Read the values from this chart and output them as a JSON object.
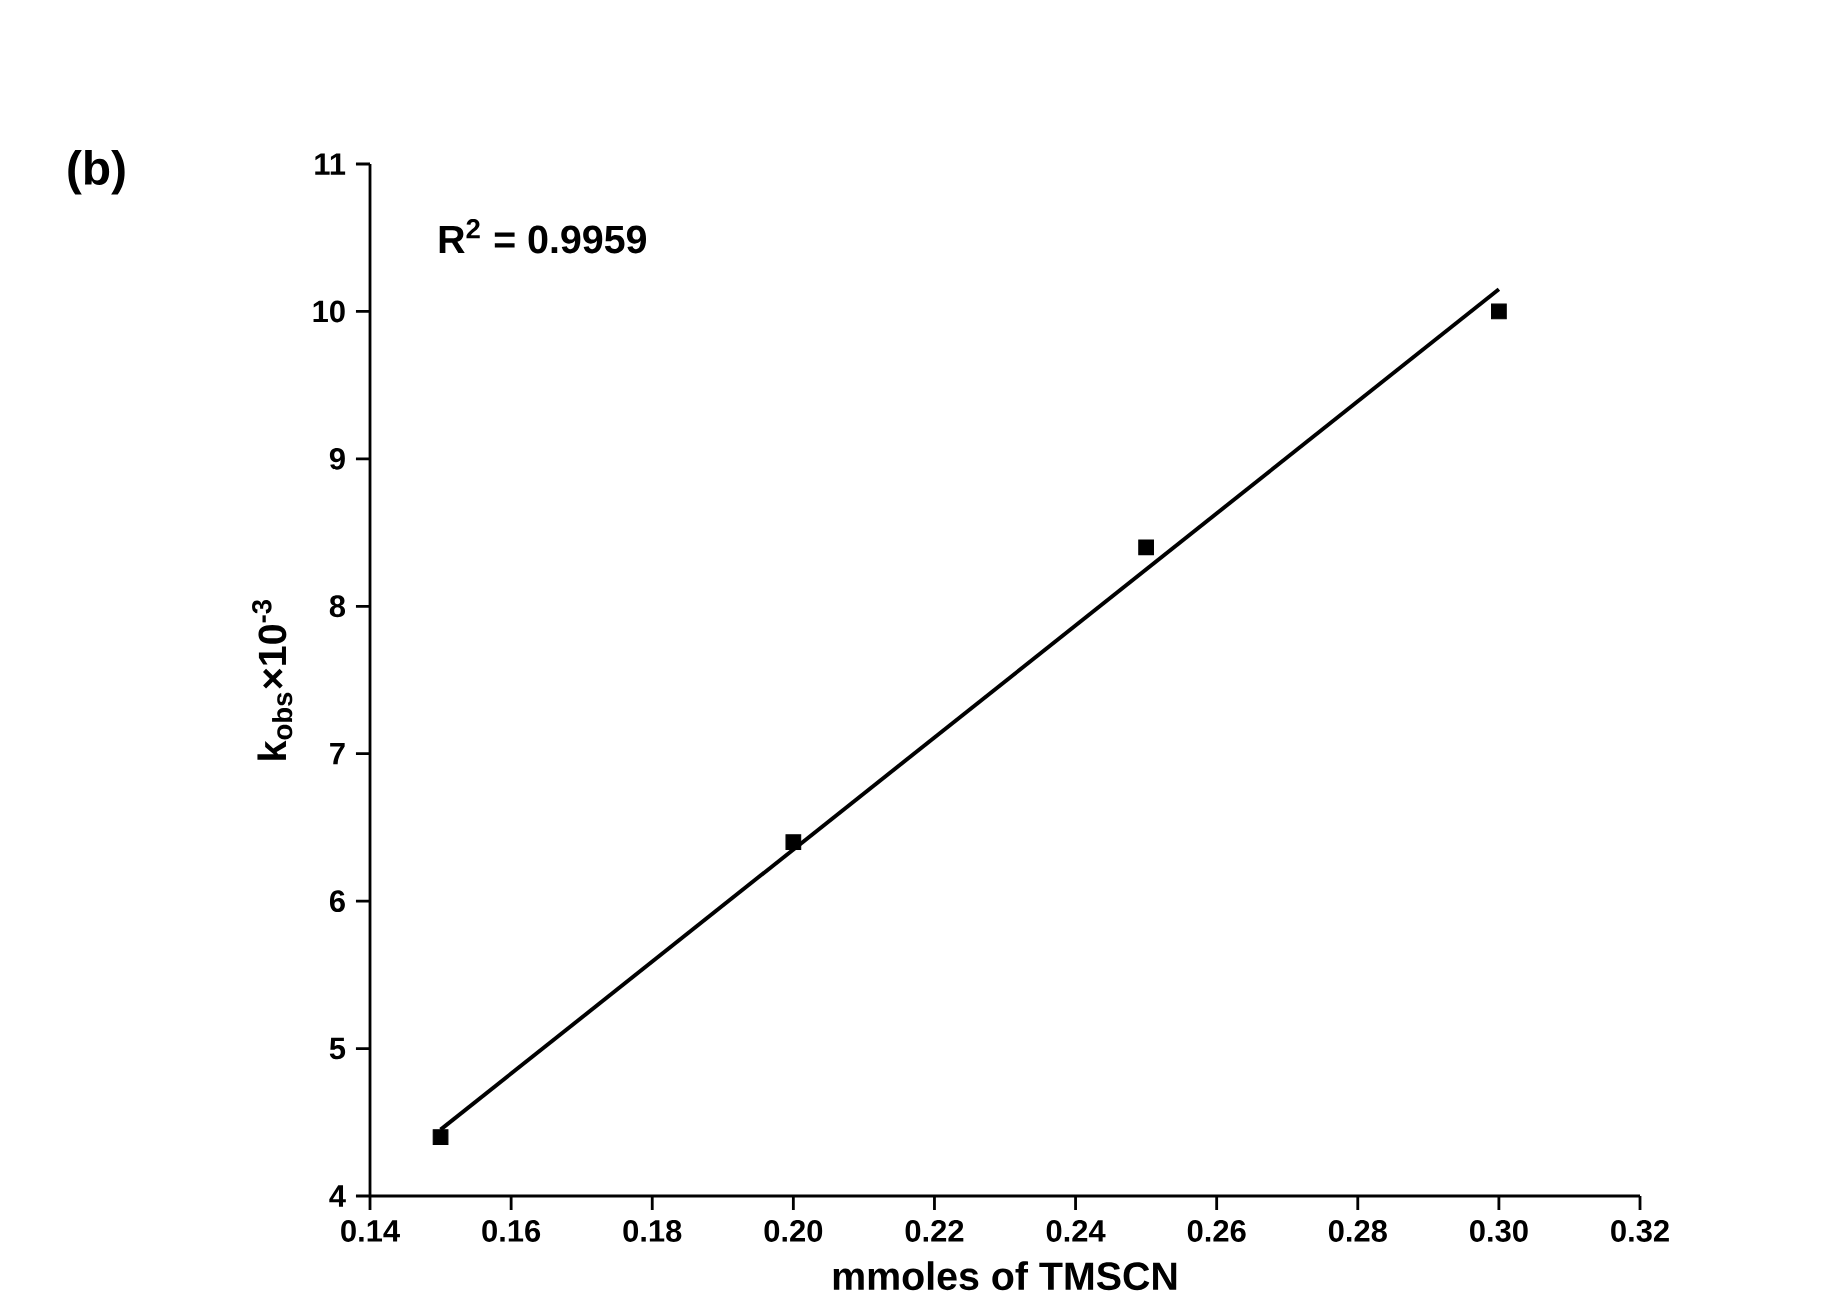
{
  "chart_data": {
    "type": "scatter",
    "xlabel": "mmoles of TMSCN",
    "ylabel": "k$_{obs}$×10$^{-3}$",
    "annotations": [
      "(b)",
      "R$^{2}$ = 0.9959"
    ],
    "series": [
      {
        "color": "#000000",
        "marker": "square",
        "x": [
          0.15,
          0.2,
          0.25,
          0.3
        ],
        "values": [
          4.4,
          6.4,
          8.4,
          10.0
        ]
      },
      {
        "type": "line",
        "color": "#000000",
        "marker": "none",
        "line_style": "solid",
        "x": [
          0.15,
          0.3
        ],
        "values": [
          4.45,
          10.15
        ]
      }
    ],
    "xlim": [
      0.14,
      0.32
    ],
    "xticks": [
      {
        "value": 0.14,
        "label": "0.14"
      },
      {
        "value": 0.16,
        "label": "0.16"
      },
      {
        "value": 0.18,
        "label": "0.18"
      },
      {
        "value": 0.2,
        "label": "0.20"
      },
      {
        "value": 0.22,
        "label": "0.22"
      },
      {
        "value": 0.24,
        "label": "0.24"
      },
      {
        "value": 0.26,
        "label": "0.26"
      },
      {
        "value": 0.28,
        "label": "0.28"
      },
      {
        "value": 0.3,
        "label": "0.30"
      },
      {
        "value": 0.32,
        "label": "0.32"
      }
    ],
    "ylim": [
      4,
      11
    ],
    "yticks": [
      4,
      5,
      6,
      7,
      8,
      9,
      10,
      11
    ],
    "grid": false
  }
}
